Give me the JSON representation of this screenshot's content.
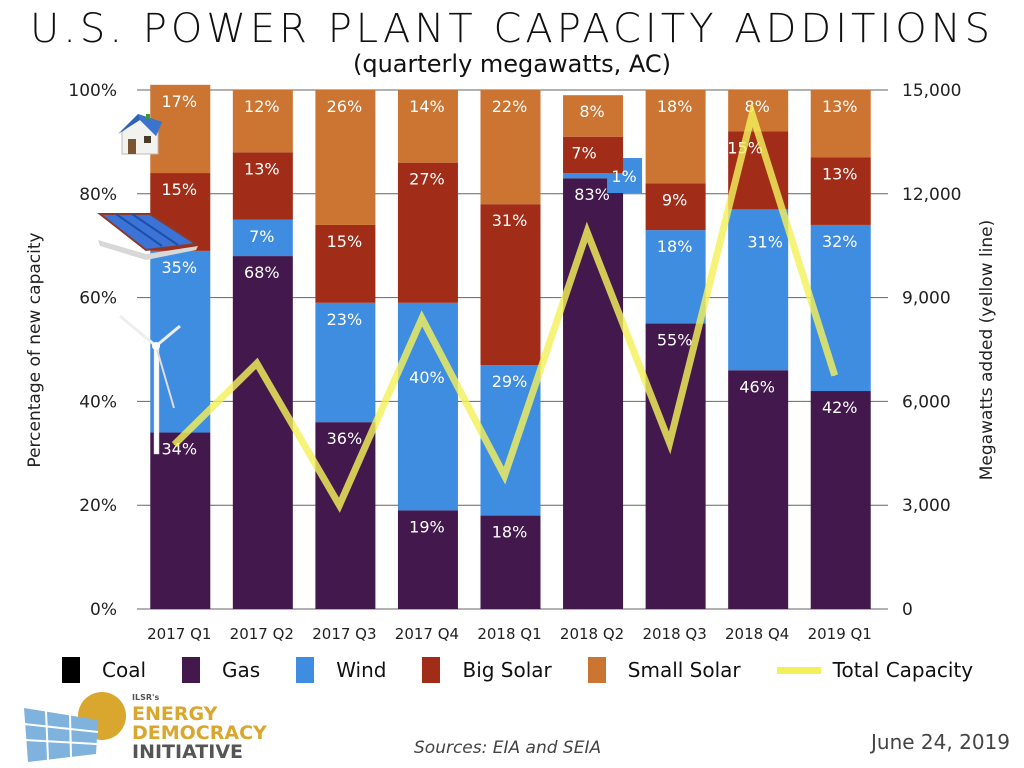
{
  "chart_data": {
    "type": "bar",
    "stacked": true,
    "title": "U.S. POWER PLANT CAPACITY ADDITIONS",
    "subtitle": "(quarterly megawatts, AC)",
    "xlabel": "",
    "ylabel": "Percentage of new capacity",
    "y2label": "Megawatts added (yellow line)",
    "ylim": [
      0,
      100
    ],
    "y2lim": [
      0,
      15000
    ],
    "yticks": [
      "0%",
      "20%",
      "40%",
      "60%",
      "80%",
      "100%"
    ],
    "y2ticks": [
      "0",
      "3,000",
      "6,000",
      "9,000",
      "12,000",
      "15,000"
    ],
    "grid": true,
    "legend_position": "bottom",
    "categories": [
      "2017 Q1",
      "2017 Q2",
      "2017 Q3",
      "2017 Q4",
      "2018 Q1",
      "2018 Q2",
      "2018 Q3",
      "2018 Q4",
      "2019 Q1"
    ],
    "series": [
      {
        "name": "Coal",
        "color": "#000000",
        "values": [
          0,
          0,
          0,
          0,
          0,
          0,
          0,
          0,
          0
        ],
        "labels": [
          "",
          "",
          "",
          "",
          "",
          "",
          "",
          "",
          ""
        ]
      },
      {
        "name": "Gas",
        "color": "#43184c",
        "values": [
          34,
          68,
          36,
          19,
          18,
          83,
          55,
          46,
          42
        ],
        "labels": [
          "34%",
          "68%",
          "36%",
          "19%",
          "18%",
          "83%",
          "55%",
          "46%",
          "42%"
        ]
      },
      {
        "name": "Wind",
        "color": "#3f8de0",
        "values": [
          35,
          7,
          23,
          40,
          29,
          1,
          18,
          31,
          32
        ],
        "labels": [
          "35%",
          "7%",
          "23%",
          "40%",
          "29%",
          "1%",
          "18%",
          "31%",
          "32%"
        ]
      },
      {
        "name": "Big Solar",
        "color": "#a12c17",
        "values": [
          15,
          13,
          15,
          27,
          31,
          7,
          9,
          15,
          13
        ],
        "labels": [
          "15%",
          "13%",
          "15%",
          "27%",
          "31%",
          "7%",
          "9%",
          "15%",
          "13%"
        ]
      },
      {
        "name": "Small Solar",
        "color": "#cc7432",
        "values": [
          17,
          12,
          26,
          14,
          22,
          8,
          18,
          8,
          13
        ],
        "labels": [
          "17%",
          "12%",
          "26%",
          "14%",
          "22%",
          "8%",
          "18%",
          "8%",
          "13%"
        ]
      }
    ],
    "line_series": {
      "name": "Total Capacity",
      "color": "#f3f05a",
      "axis": "right",
      "values": [
        4750,
        7100,
        3000,
        8400,
        3850,
        10900,
        4800,
        14300,
        6750
      ]
    }
  },
  "legend": {
    "items": [
      {
        "label": "Coal",
        "color": "#000000",
        "kind": "swatch"
      },
      {
        "label": "Gas",
        "color": "#43184c",
        "kind": "swatch"
      },
      {
        "label": "Wind",
        "color": "#3f8de0",
        "kind": "swatch"
      },
      {
        "label": "Big Solar",
        "color": "#a12c17",
        "kind": "swatch"
      },
      {
        "label": "Small Solar",
        "color": "#cc7432",
        "kind": "swatch"
      },
      {
        "label": "Total Capacity",
        "color": "#f3f05a",
        "kind": "line"
      }
    ]
  },
  "footer": {
    "sources": "Sources: EIA and SEIA",
    "date": "June 24, 2019",
    "logo": {
      "org_small": "ILSR's",
      "line1": "ENERGY",
      "line2": "DEMOCRACY",
      "line3": "INITIATIVE"
    }
  },
  "icons": {
    "small_solar": "house-icon",
    "big_solar": "solar-panel-icon",
    "wind": "wind-turbine-icon"
  }
}
